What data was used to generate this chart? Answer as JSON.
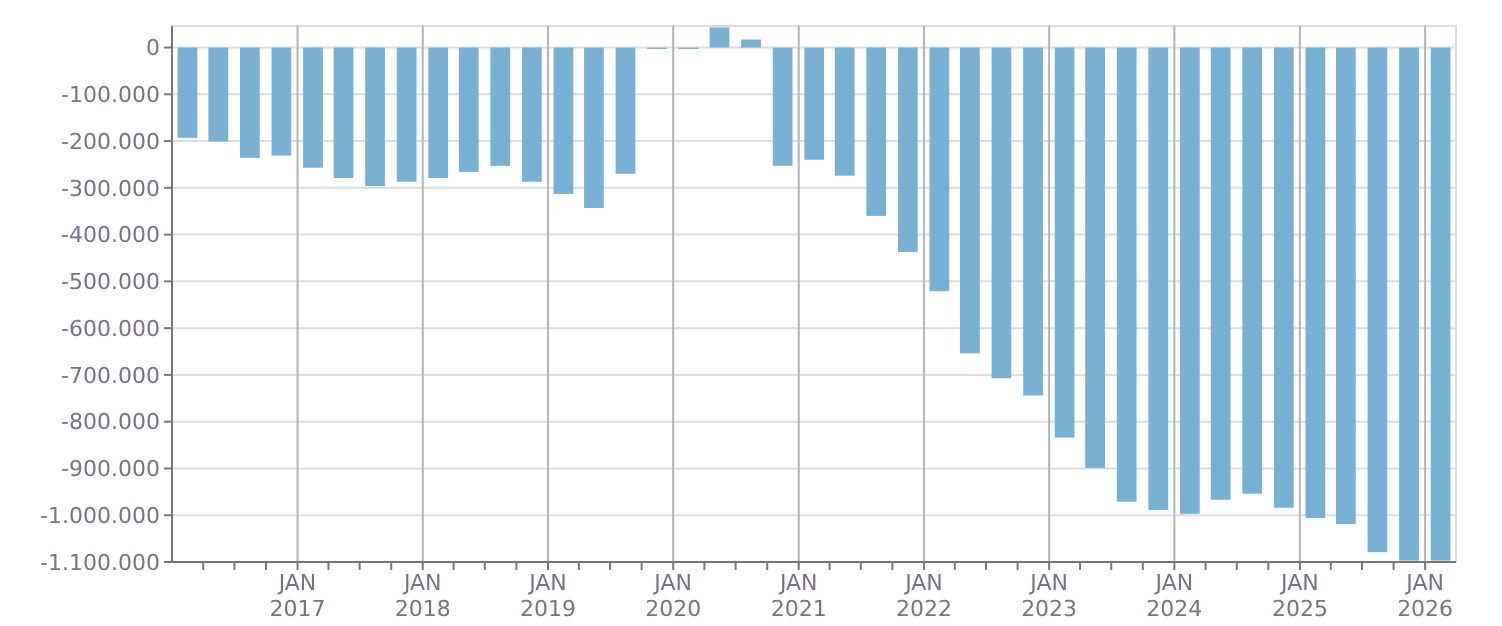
{
  "chart_data": {
    "type": "bar",
    "color": "#78b1d3",
    "grid": true,
    "x": [
      "2016-02-15",
      "2016-05-15",
      "2016-08-15",
      "2016-11-15",
      "2017-02-15",
      "2017-05-15",
      "2017-08-15",
      "2017-11-15",
      "2018-02-15",
      "2018-05-15",
      "2018-08-15",
      "2018-11-15",
      "2019-02-15",
      "2019-05-15",
      "2019-08-15",
      "2019-11-15",
      "2020-02-15",
      "2020-05-15",
      "2020-08-15",
      "2020-11-15",
      "2021-02-15",
      "2021-05-15",
      "2021-08-15",
      "2021-11-15",
      "2022-02-15",
      "2022-05-15",
      "2022-08-15",
      "2022-11-15",
      "2023-02-15",
      "2023-05-15",
      "2023-08-15",
      "2023-11-15",
      "2024-02-15",
      "2024-05-15",
      "2024-08-15",
      "2024-11-15",
      "2025-02-15",
      "2025-05-15",
      "2025-08-15",
      "2025-11-15",
      "2026-02-15"
    ],
    "values": [
      -193000,
      -201000,
      -236000,
      -231000,
      -257000,
      -279000,
      -296000,
      -287000,
      -279000,
      -266000,
      -253000,
      -287000,
      -313000,
      -343000,
      -270000,
      -3000,
      -3000,
      43000,
      17000,
      -253000,
      -240000,
      -274000,
      -360000,
      -437000,
      -521000,
      -654000,
      -707000,
      -744000,
      -834000,
      -899000,
      -971000,
      -989000,
      -997000,
      -967000,
      -954000,
      -984000,
      -1006000,
      -1019000,
      -1079000,
      -1097000,
      -1097000
    ],
    "xlim": [
      "2016-01-01",
      "2026-04-01"
    ],
    "xticks": [
      {
        "value": "2016-04-01",
        "label": null
      },
      {
        "value": "2016-07-01",
        "label": null
      },
      {
        "value": "2016-10-01",
        "label": null
      },
      {
        "value": "2017-01-01",
        "label": "JAN\n2017"
      },
      {
        "value": "2017-04-01",
        "label": null
      },
      {
        "value": "2017-07-01",
        "label": null
      },
      {
        "value": "2017-10-01",
        "label": null
      },
      {
        "value": "2018-01-01",
        "label": "JAN\n2018"
      },
      {
        "value": "2018-04-01",
        "label": null
      },
      {
        "value": "2018-07-01",
        "label": null
      },
      {
        "value": "2018-10-01",
        "label": null
      },
      {
        "value": "2019-01-01",
        "label": "JAN\n2019"
      },
      {
        "value": "2019-04-01",
        "label": null
      },
      {
        "value": "2019-07-01",
        "label": null
      },
      {
        "value": "2019-10-01",
        "label": null
      },
      {
        "value": "2020-01-01",
        "label": "JAN\n2020"
      },
      {
        "value": "2020-04-01",
        "label": null
      },
      {
        "value": "2020-07-01",
        "label": null
      },
      {
        "value": "2020-10-01",
        "label": null
      },
      {
        "value": "2021-01-01",
        "label": "JAN\n2021"
      },
      {
        "value": "2021-04-01",
        "label": null
      },
      {
        "value": "2021-07-01",
        "label": null
      },
      {
        "value": "2021-10-01",
        "label": null
      },
      {
        "value": "2022-01-01",
        "label": "JAN\n2022"
      },
      {
        "value": "2022-04-01",
        "label": null
      },
      {
        "value": "2022-07-01",
        "label": null
      },
      {
        "value": "2022-10-01",
        "label": null
      },
      {
        "value": "2023-01-01",
        "label": "JAN\n2023"
      },
      {
        "value": "2023-04-01",
        "label": null
      },
      {
        "value": "2023-07-01",
        "label": null
      },
      {
        "value": "2023-10-01",
        "label": null
      },
      {
        "value": "2024-01-01",
        "label": "JAN\n2024"
      },
      {
        "value": "2024-04-01",
        "label": null
      },
      {
        "value": "2024-07-01",
        "label": null
      },
      {
        "value": "2024-10-01",
        "label": null
      },
      {
        "value": "2025-01-01",
        "label": "JAN\n2025"
      },
      {
        "value": "2025-04-01",
        "label": null
      },
      {
        "value": "2025-07-01",
        "label": null
      },
      {
        "value": "2025-10-01",
        "label": null
      },
      {
        "value": "2026-01-01",
        "label": "JAN\n2026"
      }
    ],
    "ylim": [
      -1100000,
      46000
    ],
    "yticks": [
      0,
      {
        "value": -100000,
        "label": "-100.000"
      },
      {
        "value": -200000,
        "label": "-200.000"
      },
      {
        "value": -300000,
        "label": "-300.000"
      },
      {
        "value": -400000,
        "label": "-400.000"
      },
      {
        "value": -500000,
        "label": "-500.000"
      },
      {
        "value": -600000,
        "label": "-600.000"
      },
      {
        "value": -700000,
        "label": "-700.000"
      },
      {
        "value": -800000,
        "label": "-800.000"
      },
      {
        "value": -900000,
        "label": "-900.000"
      },
      {
        "value": -1000000,
        "label": "-1.000.000"
      },
      {
        "value": -1100000,
        "label": "-1.100.000"
      }
    ]
  }
}
